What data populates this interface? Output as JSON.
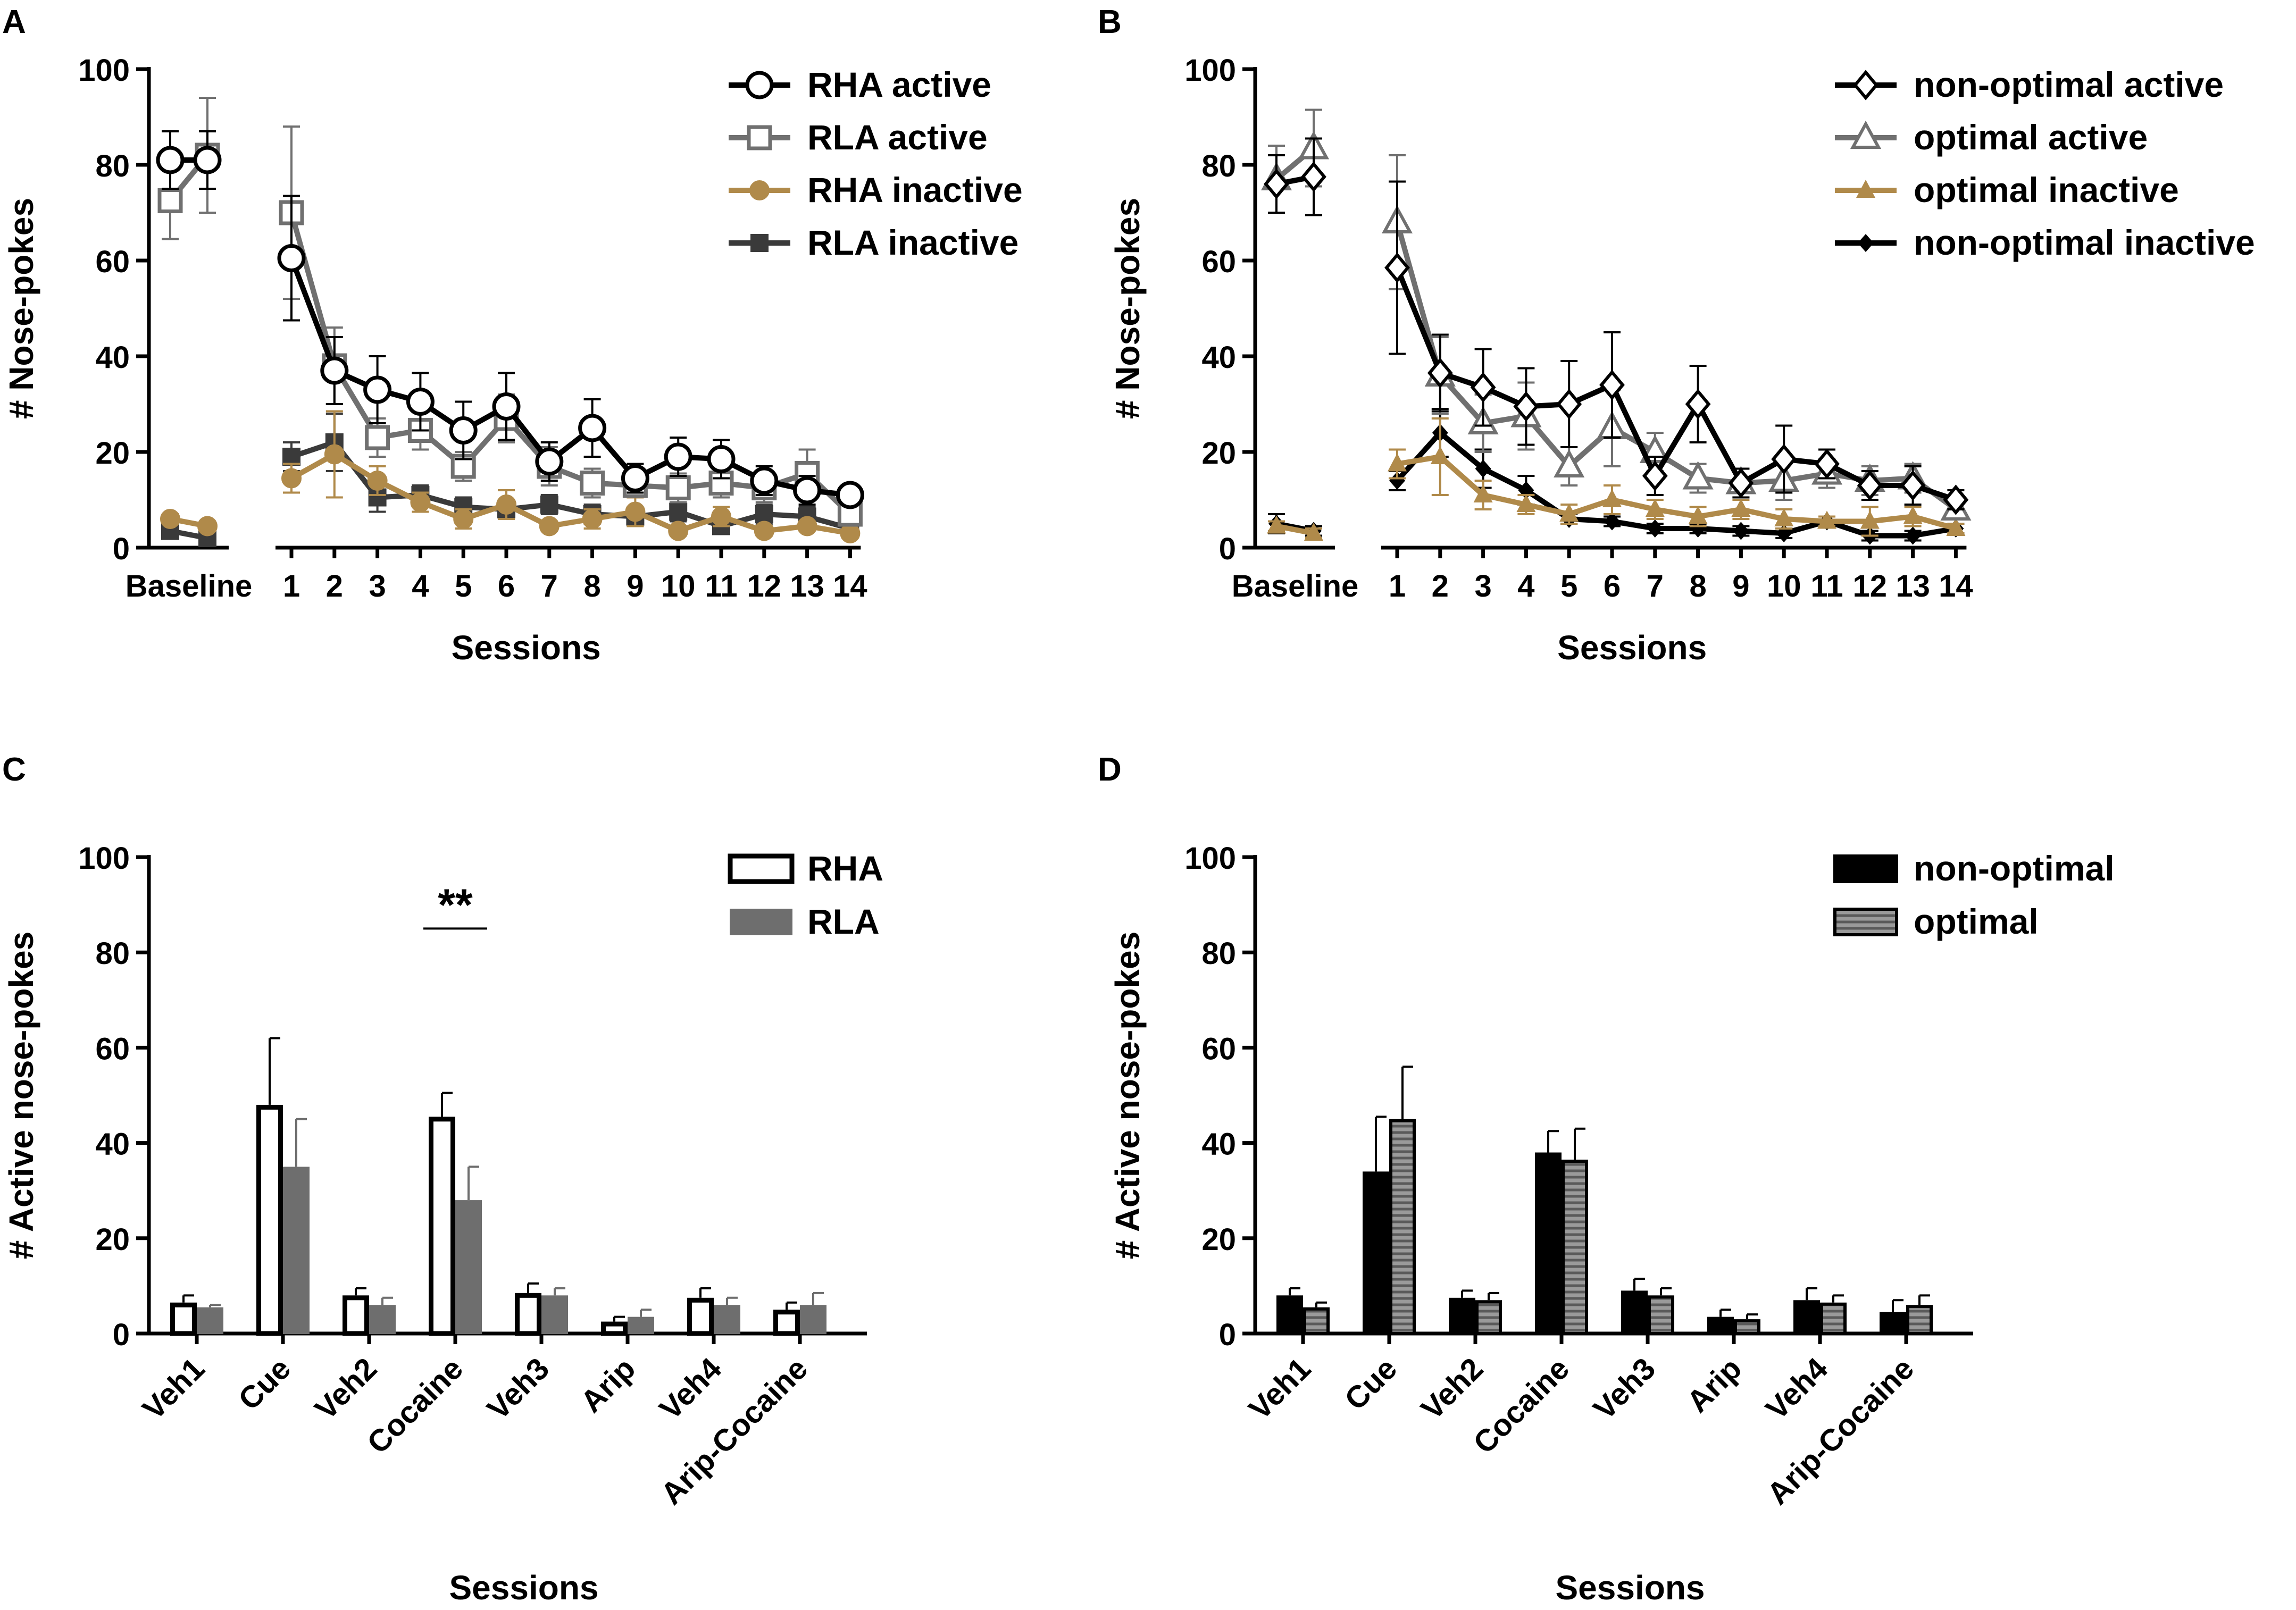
{
  "colors": {
    "black": "#000000",
    "gray": "#707070",
    "gold": "#b08a4a",
    "dark": "#3a3a3a",
    "bar_gray": "#6e6e6e",
    "hatch_bg": "#9a9a9a",
    "hatch_line": "#5a5a5a"
  },
  "chart_data": [
    {
      "panel": "A",
      "type": "line",
      "ylabel": "# Nose-pokes",
      "xlabel": "Sessions",
      "ylim": [
        0,
        100
      ],
      "yticks": [
        0,
        20,
        40,
        60,
        80,
        100
      ],
      "baseline_label": "Baseline",
      "session_labels": [
        "1",
        "2",
        "3",
        "4",
        "5",
        "6",
        "7",
        "8",
        "9",
        "10",
        "11",
        "12",
        "13",
        "14"
      ],
      "series": [
        {
          "name": "RHA active",
          "marker": "circle-open",
          "color": "black",
          "baseline": [
            81,
            81
          ],
          "baseline_err": [
            6,
            6
          ],
          "values": [
            60.5,
            37,
            33,
            30.5,
            24.5,
            29.5,
            18,
            25,
            14.5,
            19,
            18.5,
            14,
            12,
            11
          ],
          "err": [
            13,
            7,
            7,
            6,
            6,
            7,
            4,
            6,
            3,
            4,
            4,
            3,
            3,
            2
          ]
        },
        {
          "name": "RLA active",
          "marker": "square-open",
          "color": "gray",
          "baseline": [
            72.5,
            82
          ],
          "baseline_err": [
            8,
            12
          ],
          "values": [
            70,
            38,
            23,
            24.5,
            17,
            27,
            17,
            13.5,
            13,
            12.5,
            13.5,
            12.5,
            15.5,
            7
          ],
          "err": [
            18,
            8,
            4,
            4,
            3,
            5,
            4,
            3,
            2,
            3,
            3,
            3,
            5,
            2
          ]
        },
        {
          "name": "RHA inactive",
          "marker": "circle-filled",
          "color": "gold",
          "baseline": [
            6,
            4.5
          ],
          "baseline_err": [
            1,
            1
          ],
          "values": [
            14.5,
            19.5,
            14,
            9.5,
            6,
            9,
            4.5,
            6,
            7.5,
            3.5,
            6.5,
            3.5,
            4.5,
            3
          ],
          "err": [
            3,
            9,
            3,
            2,
            2,
            3,
            1,
            2,
            3,
            1,
            2,
            1,
            1,
            1
          ]
        },
        {
          "name": "RLA inactive",
          "marker": "square-filled",
          "color": "dark",
          "baseline": [
            3.5,
            2
          ],
          "baseline_err": [
            1,
            1
          ],
          "values": [
            19,
            22,
            10.5,
            11,
            8.5,
            8,
            9,
            7,
            6.5,
            7.5,
            4.5,
            7,
            6.5,
            4
          ],
          "err": [
            3,
            6,
            3,
            2,
            2,
            2,
            2,
            2,
            2,
            2,
            1,
            2,
            2,
            1
          ]
        }
      ]
    },
    {
      "panel": "B",
      "type": "line",
      "ylabel": "# Nose-pokes",
      "xlabel": "Sessions",
      "ylim": [
        0,
        100
      ],
      "yticks": [
        0,
        20,
        40,
        60,
        80,
        100
      ],
      "baseline_label": "Baseline",
      "session_labels": [
        "1",
        "2",
        "3",
        "4",
        "5",
        "6",
        "7",
        "8",
        "9",
        "10",
        "11",
        "12",
        "13",
        "14"
      ],
      "series": [
        {
          "name": "non-optimal active",
          "marker": "diamond-open",
          "color": "black",
          "baseline": [
            76,
            77.5
          ],
          "baseline_err": [
            6,
            8
          ],
          "values": [
            58.5,
            36.5,
            33.5,
            29.5,
            30,
            34,
            15,
            30,
            13.5,
            18.5,
            17.5,
            13,
            13,
            10
          ],
          "err": [
            18,
            8,
            8,
            8,
            9,
            11,
            4,
            8,
            3,
            7,
            3,
            3,
            4,
            2
          ]
        },
        {
          "name": "optimal active",
          "marker": "triangle-open",
          "color": "gray",
          "baseline": [
            77,
            83.5
          ],
          "baseline_err": [
            7,
            8
          ],
          "values": [
            68,
            36,
            26,
            27.5,
            17,
            25,
            20,
            14.5,
            13.5,
            14,
            15.5,
            14,
            14.5,
            8
          ],
          "err": [
            14,
            8,
            6,
            7,
            4,
            8,
            4,
            3,
            3,
            4,
            3,
            3,
            3,
            2
          ]
        },
        {
          "name": "optimal inactive",
          "marker": "triangle-filled",
          "color": "gold",
          "baseline": [
            4.5,
            3
          ],
          "baseline_err": [
            1,
            1
          ],
          "values": [
            17.5,
            19,
            11,
            9,
            7,
            10,
            8,
            6.5,
            8,
            6,
            5.5,
            5.5,
            6.5,
            4
          ],
          "err": [
            3,
            8,
            3,
            2,
            2,
            3,
            2,
            2,
            2,
            2,
            1,
            3,
            2,
            1
          ]
        },
        {
          "name": "non-optimal inactive",
          "marker": "diamond-filled",
          "color": "black",
          "baseline": [
            5,
            3.5
          ],
          "baseline_err": [
            2,
            1
          ],
          "values": [
            14,
            24,
            16.5,
            12,
            6,
            5.5,
            4,
            4,
            3.5,
            3,
            5.5,
            2.5,
            2.5,
            4
          ],
          "err": [
            2,
            5,
            4,
            3,
            1,
            1,
            1,
            1,
            1,
            1,
            1,
            1,
            1,
            1
          ]
        }
      ]
    },
    {
      "panel": "C",
      "type": "bar",
      "ylabel": "# Active nose-pokes",
      "xlabel": "Sessions",
      "ylim": [
        0,
        100
      ],
      "yticks": [
        0,
        20,
        40,
        60,
        80,
        100
      ],
      "categories": [
        "Veh1",
        "Cue",
        "Veh2",
        "Cocaine",
        "Veh3",
        "Arip",
        "Veh4",
        "Arip-Cocaine"
      ],
      "annotation": {
        "text": "**",
        "category": "Cocaine",
        "y": 85
      },
      "series": [
        {
          "name": "RHA",
          "style": "open",
          "values": [
            6.5,
            48,
            8,
            45.5,
            8.5,
            2.5,
            7.5,
            5
          ],
          "err": [
            1.5,
            14,
            1.5,
            5,
            2,
            1,
            2,
            1.5
          ]
        },
        {
          "name": "RLA",
          "style": "gray",
          "values": [
            5.5,
            35,
            6,
            28,
            8,
            3.5,
            6,
            6
          ],
          "err": [
            0.5,
            10,
            1.5,
            7,
            1.5,
            1.5,
            1.5,
            2.5
          ]
        }
      ]
    },
    {
      "panel": "D",
      "type": "bar",
      "ylabel": "# Active nose-pokes",
      "xlabel": "Sessions",
      "ylim": [
        0,
        100
      ],
      "yticks": [
        0,
        20,
        40,
        60,
        80,
        100
      ],
      "categories": [
        "Veh1",
        "Cue",
        "Veh2",
        "Cocaine",
        "Veh3",
        "Arip",
        "Veh4",
        "Arip-Cocaine"
      ],
      "series": [
        {
          "name": "non-optimal",
          "style": "black",
          "values": [
            8,
            34,
            7.5,
            38,
            9,
            3.5,
            7,
            4.5
          ],
          "err": [
            1.5,
            11.5,
            1.5,
            4.5,
            2.5,
            1.5,
            2.5,
            2.5
          ]
        },
        {
          "name": "optimal",
          "style": "hatched",
          "values": [
            5.5,
            45,
            7,
            36.5,
            8,
            3,
            6.5,
            6
          ],
          "err": [
            1,
            11,
            1.5,
            6.5,
            1.5,
            1,
            1.5,
            2
          ]
        }
      ]
    }
  ]
}
